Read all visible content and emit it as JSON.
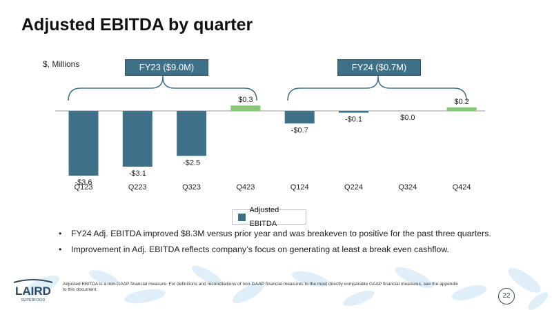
{
  "page": {
    "title": "Adjusted EBITDA by quarter",
    "unit_label": "$, Millions",
    "page_number": "22"
  },
  "groups": {
    "fy23": "FY23 ($9.0M)",
    "fy24": "FY24 ($0.7M)"
  },
  "legend": {
    "label": "Adjusted EBITDA"
  },
  "bullets": [
    "FY24 Adj. EBITDA improved $8.3M versus prior year and was breakeven to positive for the past three quarters.",
    "Improvement in Adj. EBITDA reflects company’s focus on generating at least a break even cashflow."
  ],
  "footer": {
    "note": "Adjusted EBITDA is a non-GAAP financial measure. For definitions and reconciliations of non-GAAP financial measures to the most directly comparable GAAP financial measures, see the appendix to this document.",
    "logo_text": "LAIRD",
    "logo_subtext": "SUPERFOOD"
  },
  "colors": {
    "negative": "#3e7088",
    "positive": "#8bc87a",
    "bracket": "#3e7088"
  },
  "chart_data": {
    "type": "bar",
    "title": "Adjusted EBITDA by quarter",
    "ylabel": "$, Millions",
    "xlabel": "",
    "categories": [
      "Q123",
      "Q223",
      "Q323",
      "Q423",
      "Q124",
      "Q224",
      "Q324",
      "Q424"
    ],
    "series": [
      {
        "name": "Adjusted EBITDA",
        "values": [
          -3.6,
          -3.1,
          -2.5,
          0.3,
          -0.7,
          -0.1,
          0.0,
          0.2
        ]
      }
    ],
    "data_labels": [
      "-$3.6",
      "-$3.1",
      "-$2.5",
      "$0.3",
      "-$0.7",
      "-$0.1",
      "$0.0",
      "$0.2"
    ],
    "ylim": [
      -3.6,
      0.3
    ],
    "legend_position": "bottom-center",
    "grid": false
  }
}
